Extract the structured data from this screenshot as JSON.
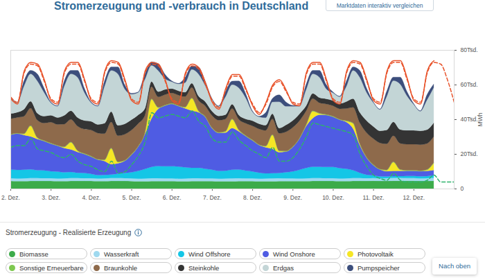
{
  "chart_data": {
    "type": "area",
    "title": "Stromerzeugung und -verbrauch in Deutschland",
    "annotations": {
      "button": "Marktdaten interaktiv vergleichen",
      "legend_title": "Stromerzeugung - Realisierte Erzeugung",
      "back_to_top": "Nach oben"
    },
    "y_label": "MWh",
    "stacked": true,
    "grid": false,
    "xlim": [
      2,
      13
    ],
    "xticks": [
      {
        "value": 2,
        "label": "2. Dez."
      },
      {
        "value": 3,
        "label": "3. Dez."
      },
      {
        "value": 4,
        "label": "4. Dez."
      },
      {
        "value": 5,
        "label": "5. Dez."
      },
      {
        "value": 6,
        "label": "6. Dez."
      },
      {
        "value": 7,
        "label": "7. Dez."
      },
      {
        "value": 8,
        "label": "8. Dez."
      },
      {
        "value": 9,
        "label": "9. Dez."
      },
      {
        "value": 10,
        "label": "10. Dez."
      },
      {
        "value": 11,
        "label": "11. Dez."
      },
      {
        "value": 12,
        "label": "12. Dez."
      }
    ],
    "ylim": [
      0,
      80000
    ],
    "yticks": [
      0,
      {
        "value": 20000,
        "label": "20Tsd."
      },
      {
        "value": 40000,
        "label": "40Tsd."
      },
      {
        "value": 60000,
        "label": "60Tsd."
      },
      {
        "value": 80000,
        "label": "80Tsd."
      }
    ],
    "x": [
      2,
      2.167,
      2.333,
      2.5,
      2.667,
      2.833,
      3,
      3.167,
      3.333,
      3.5,
      3.667,
      3.833,
      4,
      4.167,
      4.333,
      4.5,
      4.667,
      4.833,
      5,
      5.167,
      5.333,
      5.5,
      5.667,
      5.833,
      6,
      6.167,
      6.333,
      6.5,
      6.667,
      6.833,
      7,
      7.167,
      7.333,
      7.5,
      7.667,
      7.833,
      8,
      8.167,
      8.333,
      8.5,
      8.667,
      8.833,
      9,
      9.167,
      9.333,
      9.5,
      9.667,
      9.833,
      10,
      10.167,
      10.333,
      10.5,
      10.667,
      10.833,
      11,
      11.167,
      11.333,
      11.5,
      11.667,
      11.833,
      12,
      12.167,
      12.333,
      12.5,
      12.667,
      12.833,
      13
    ],
    "series": [
      {
        "name": "Biomasse",
        "color": "#3cab4a",
        "values": [
          4400,
          4300,
          4300,
          4400,
          4400,
          4400,
          4400,
          4300,
          4300,
          4400,
          4400,
          4400,
          4400,
          4300,
          4300,
          4400,
          4400,
          4400,
          4300,
          4200,
          4200,
          4300,
          4300,
          4300,
          4300,
          4200,
          4200,
          4300,
          4300,
          4300,
          4300,
          4200,
          4200,
          4200,
          4300,
          4300,
          4300,
          4200,
          4200,
          4200,
          4300,
          4300,
          4300,
          4300,
          4300,
          4400,
          4400,
          4400,
          4400,
          4300,
          4300,
          4400,
          4400,
          4400,
          4500,
          4400,
          4400,
          4500,
          4500,
          4500,
          4500,
          4400,
          4400,
          4500,
          null,
          null,
          null
        ]
      },
      {
        "name": "Wasserkraft",
        "color": "#9fd9ef",
        "values": [
          1600,
          1500,
          1600,
          1700,
          1700,
          1600,
          1600,
          1500,
          1600,
          1700,
          1700,
          1600,
          1600,
          1500,
          1600,
          1700,
          1700,
          1600,
          1600,
          1500,
          1600,
          1700,
          1700,
          1600,
          1600,
          1500,
          1600,
          1700,
          1700,
          1600,
          1600,
          1500,
          1600,
          1700,
          1700,
          1600,
          1600,
          1500,
          1600,
          1700,
          1700,
          1600,
          1600,
          1500,
          1600,
          1700,
          1700,
          1600,
          1600,
          1500,
          1600,
          1700,
          1700,
          1600,
          1600,
          1500,
          1600,
          1700,
          1700,
          1600,
          1600,
          1500,
          1600,
          1700,
          null,
          null,
          null
        ]
      },
      {
        "name": "Wind Offshore",
        "color": "#14c6e6",
        "values": [
          5000,
          5000,
          5000,
          5000,
          4500,
          4500,
          4000,
          4000,
          3500,
          3500,
          3000,
          3000,
          2500,
          2000,
          2000,
          2000,
          2500,
          3000,
          3500,
          4500,
          5500,
          6500,
          7000,
          7000,
          7000,
          7000,
          6500,
          6000,
          6000,
          5500,
          5000,
          4500,
          4500,
          5000,
          5000,
          4500,
          4000,
          3500,
          3000,
          3000,
          3000,
          3500,
          4000,
          5000,
          6000,
          6500,
          6500,
          6500,
          6500,
          6000,
          5500,
          4500,
          3000,
          2000,
          1500,
          1200,
          1000,
          1000,
          1000,
          1200,
          1200,
          1200,
          1200,
          1500,
          null,
          null,
          null
        ]
      },
      {
        "name": "Wind Onshore",
        "color": "#4f5ce3",
        "values": [
          20000,
          21000,
          20000,
          19000,
          18000,
          17000,
          16000,
          15000,
          14000,
          13000,
          12000,
          11000,
          10000,
          9000,
          8000,
          6000,
          6000,
          7000,
          10000,
          14000,
          20000,
          28000,
          33000,
          35000,
          36000,
          35000,
          34000,
          33000,
          32000,
          30000,
          24000,
          22000,
          22000,
          24000,
          22000,
          20000,
          18000,
          16000,
          15000,
          14000,
          12000,
          12000,
          14000,
          18000,
          24000,
          28000,
          30000,
          30000,
          29000,
          28000,
          27000,
          24000,
          16000,
          10000,
          6000,
          4000,
          3000,
          3000,
          3000,
          3000,
          3000,
          3000,
          3000,
          3000,
          null,
          null,
          null
        ]
      },
      {
        "name": "Photovoltaik",
        "color": "#f5e625",
        "values": [
          0,
          0,
          500,
          6000,
          600,
          0,
          0,
          0,
          500,
          4000,
          600,
          0,
          0,
          0,
          500,
          9000,
          600,
          0,
          0,
          0,
          500,
          11000,
          600,
          0,
          0,
          0,
          500,
          7000,
          600,
          0,
          0,
          0,
          500,
          5000,
          600,
          0,
          0,
          0,
          500,
          8000,
          600,
          0,
          0,
          0,
          500,
          4000,
          600,
          0,
          0,
          0,
          500,
          3000,
          600,
          0,
          0,
          0,
          500,
          5000,
          600,
          0,
          0,
          0,
          500,
          4000,
          null,
          null,
          null
        ]
      },
      {
        "name": "Sonstige Erneuerbare",
        "color": "#7ec850",
        "values": [
          300,
          250,
          300,
          300,
          300,
          300,
          300,
          250,
          300,
          300,
          300,
          300,
          300,
          250,
          300,
          300,
          300,
          300,
          300,
          250,
          300,
          300,
          300,
          300,
          300,
          250,
          300,
          300,
          300,
          300,
          300,
          250,
          300,
          300,
          300,
          300,
          300,
          250,
          300,
          300,
          300,
          300,
          300,
          250,
          300,
          300,
          300,
          300,
          300,
          250,
          300,
          300,
          300,
          300,
          300,
          250,
          300,
          300,
          300,
          300,
          300,
          250,
          300,
          300,
          null,
          null,
          null
        ]
      },
      {
        "name": "Braunkohle",
        "color": "#8e6a4b",
        "values": [
          9000,
          9000,
          10000,
          10000,
          10000,
          10000,
          12000,
          12000,
          13000,
          13000,
          14000,
          14000,
          15000,
          15000,
          15000,
          15000,
          15000,
          15000,
          14000,
          13000,
          10000,
          7000,
          6000,
          6000,
          6000,
          6000,
          6000,
          6000,
          6000,
          6000,
          7000,
          7000,
          7000,
          6000,
          6000,
          7000,
          8000,
          9000,
          9000,
          9000,
          10000,
          11000,
          11000,
          10000,
          8000,
          7000,
          6000,
          6000,
          6000,
          6000,
          7000,
          9000,
          12000,
          14000,
          15000,
          15000,
          15000,
          15000,
          15000,
          15000,
          15000,
          15000,
          15000,
          15000,
          null,
          null,
          null
        ]
      },
      {
        "name": "Steinkohle",
        "color": "#343434",
        "values": [
          3000,
          3000,
          4000,
          4000,
          4000,
          4000,
          4000,
          4000,
          5000,
          5000,
          5000,
          5000,
          5000,
          5000,
          6000,
          6000,
          6000,
          6000,
          6000,
          5000,
          4000,
          3000,
          3000,
          3000,
          2500,
          2500,
          2500,
          2500,
          2500,
          2500,
          2500,
          2500,
          2500,
          2500,
          2500,
          2500,
          3000,
          3000,
          3000,
          3000,
          3000,
          4000,
          4000,
          4000,
          3000,
          3000,
          3000,
          3000,
          3000,
          3000,
          4000,
          5000,
          6000,
          7000,
          7000,
          7000,
          8000,
          8000,
          8000,
          8000,
          8000,
          8000,
          8000,
          8000,
          null,
          null,
          null
        ]
      },
      {
        "name": "Erdgas",
        "color": "#c3d5d6",
        "values": [
          9300,
          5500,
          13300,
          15800,
          18700,
          13800,
          7300,
          6500,
          16800,
          21300,
          23200,
          16300,
          10800,
          10500,
          21300,
          23800,
          29700,
          20300,
          14800,
          13000,
          16800,
          9300,
          12200,
          6300,
          4000,
          4000,
          5500,
          8000,
          12700,
          9300,
          6800,
          5500,
          10300,
          11300,
          15700,
          12300,
          5300,
          4000,
          4300,
          6800,
          15200,
          10800,
          8300,
          4500,
          9300,
          11300,
          11700,
          5800,
          4500,
          4000,
          8800,
          16300,
          20200,
          16300,
          13800,
          12300,
          19300,
          23800,
          26200,
          20100,
          15100,
          11300,
          17100,
          20300,
          null,
          null,
          null
        ]
      },
      {
        "name": "Pumpspeicher",
        "color": "#3c4e7c",
        "values": [
          500,
          300,
          3000,
          2000,
          4000,
          2500,
          500,
          300,
          3000,
          2000,
          4000,
          2500,
          500,
          300,
          3000,
          2000,
          4000,
          2500,
          500,
          300,
          3000,
          2000,
          4000,
          2500,
          500,
          300,
          3000,
          2000,
          4000,
          2500,
          500,
          300,
          3000,
          2000,
          4000,
          2500,
          500,
          300,
          3000,
          2000,
          4000,
          2500,
          500,
          300,
          3000,
          2000,
          4000,
          2500,
          500,
          300,
          3000,
          2000,
          4000,
          2500,
          500,
          300,
          3000,
          2000,
          4000,
          2500,
          500,
          300,
          3000,
          2000,
          null,
          null,
          null
        ]
      },
      {
        "type": "line",
        "color": "#e8532b",
        "line_style": "solid",
        "values": [
          52000,
          49000,
          68000,
          73000,
          72000,
          63000,
          51000,
          49000,
          68000,
          73000,
          73000,
          63000,
          51000,
          49000,
          68000,
          74000,
          73000,
          63000,
          51000,
          49000,
          68000,
          73000,
          72000,
          63000,
          51000,
          49000,
          67000,
          72000,
          70000,
          61000,
          50000,
          46000,
          58000,
          66000,
          66000,
          58000,
          48000,
          43000,
          50000,
          60000,
          63000,
          57000,
          49000,
          48000,
          67000,
          73000,
          73000,
          63000,
          51000,
          49000,
          68000,
          74000,
          73000,
          63000,
          51000,
          49000,
          68000,
          74000,
          74000,
          64000,
          51000,
          49000,
          68000,
          74000,
          null,
          null,
          null
        ]
      },
      {
        "type": "line",
        "color": "#e8532b",
        "line_style": "dashed",
        "values": [
          53000,
          50000,
          67000,
          72000,
          71000,
          62000,
          52000,
          50000,
          67000,
          72000,
          72000,
          62000,
          52000,
          50000,
          67000,
          73000,
          72000,
          62000,
          52000,
          50000,
          67000,
          72000,
          71000,
          62000,
          52000,
          50000,
          66000,
          71000,
          69000,
          60000,
          51000,
          47000,
          57000,
          65000,
          65000,
          57000,
          49000,
          44000,
          49000,
          59000,
          62000,
          56000,
          50000,
          49000,
          66000,
          72000,
          72000,
          62000,
          52000,
          50000,
          67000,
          73000,
          72000,
          62000,
          52000,
          50000,
          67000,
          73000,
          73000,
          63000,
          52000,
          50000,
          67000,
          73000,
          72000,
          63000,
          50000
        ]
      },
      {
        "type": "line",
        "color": "#2db36b",
        "line_style": "dashed",
        "values": [
          24000,
          25000,
          25000,
          29000,
          23000,
          22000,
          21000,
          19000,
          18000,
          20000,
          16000,
          14000,
          13000,
          11000,
          10000,
          16000,
          9000,
          10000,
          14000,
          19000,
          27000,
          44000,
          41000,
          42000,
          43000,
          42000,
          41000,
          45000,
          39000,
          36000,
          29000,
          27000,
          27000,
          33000,
          28000,
          25000,
          22000,
          20000,
          18000,
          24000,
          16000,
          16000,
          18000,
          23000,
          30000,
          38000,
          37000,
          36000,
          35000,
          34000,
          33000,
          31000,
          20000,
          13000,
          8000,
          6000,
          5000,
          9000,
          5000,
          4000,
          4000,
          4000,
          5000,
          8000,
          4000,
          4000,
          4000
        ]
      }
    ]
  }
}
